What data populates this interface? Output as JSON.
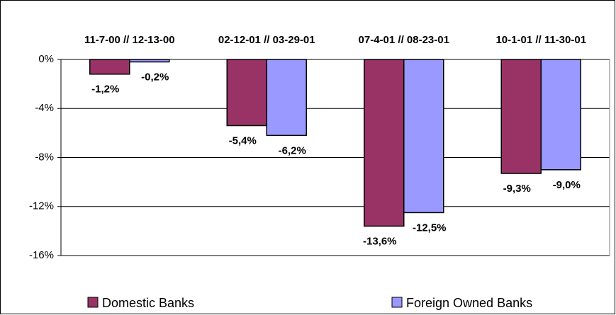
{
  "chart_data": {
    "type": "bar",
    "categories": [
      "11-7-00 // 12-13-00",
      "02-12-01 // 03-29-01",
      "07-4-01 // 08-23-01",
      "10-1-01 // 11-30-01"
    ],
    "series": [
      {
        "name": "Domestic Banks",
        "color": "#993366",
        "values": [
          -1.2,
          -5.4,
          -13.6,
          -9.3
        ],
        "value_labels": [
          "-1,2%",
          "-5,4%",
          "-13,6%",
          "-9,3%"
        ]
      },
      {
        "name": "Foreign Owned Banks",
        "color": "#9999ff",
        "values": [
          -0.2,
          -6.2,
          -12.5,
          -9.0
        ],
        "value_labels": [
          "-0,2%",
          "-6,2%",
          "-12,5%",
          "-9,0%"
        ]
      }
    ],
    "ylim": [
      -16,
      0
    ],
    "yticks": [
      {
        "value": 0,
        "label": "0%"
      },
      {
        "value": -4,
        "label": "-4%"
      },
      {
        "value": -8,
        "label": "-8%"
      },
      {
        "value": -12,
        "label": "-12%"
      },
      {
        "value": -16,
        "label": "-16%"
      }
    ],
    "grid": true,
    "legend": "bottom"
  }
}
